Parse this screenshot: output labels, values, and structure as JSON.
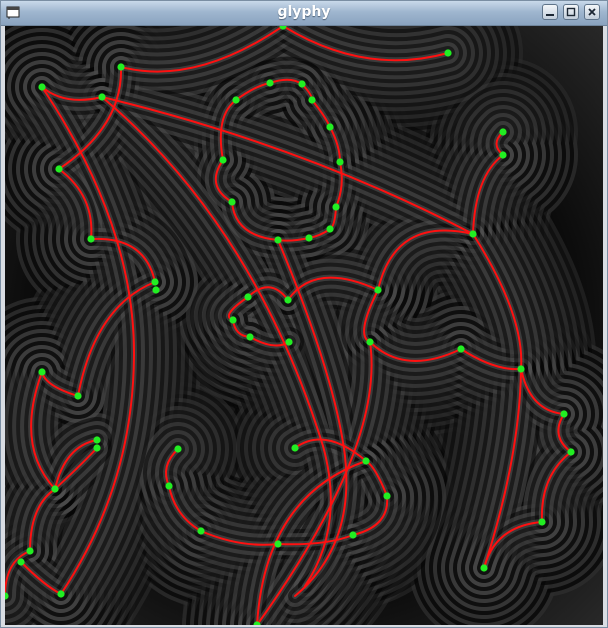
{
  "window": {
    "title": "glyphy"
  },
  "icons": {
    "app": "window-app-icon",
    "minimize": "minimize-icon",
    "maximize": "maximize-icon",
    "close": "close-icon"
  },
  "colors": {
    "curve": "#ff1010",
    "control_point": "#22ee22",
    "background": "#000000"
  }
}
